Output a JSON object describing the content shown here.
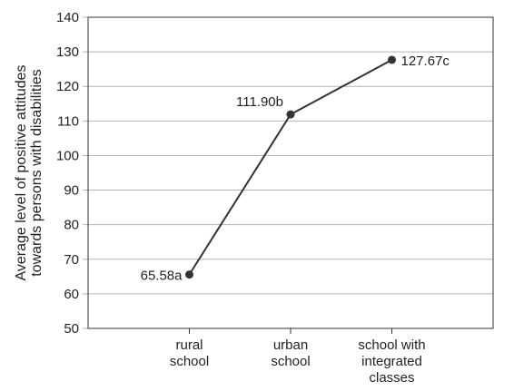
{
  "chart_data": {
    "type": "line",
    "categories": [
      [
        "rural",
        "school"
      ],
      [
        "urban",
        "school"
      ],
      [
        "school with",
        "integrated",
        "classes"
      ]
    ],
    "values": [
      65.58,
      111.9,
      127.67
    ],
    "data_labels": [
      "65.58a",
      "111.90b",
      "127.67c"
    ],
    "ylabel": [
      "Average level of positive attitudes",
      "towards persons with disabilities"
    ],
    "ylim": [
      50,
      140
    ],
    "yticks": [
      "50",
      "60",
      "70",
      "80",
      "90",
      "100",
      "110",
      "120",
      "130",
      "140"
    ],
    "grid": true,
    "colors": {
      "line": "#333333",
      "marker": "#333333",
      "grid": "#b4b4b4",
      "axis": "#333333"
    }
  }
}
